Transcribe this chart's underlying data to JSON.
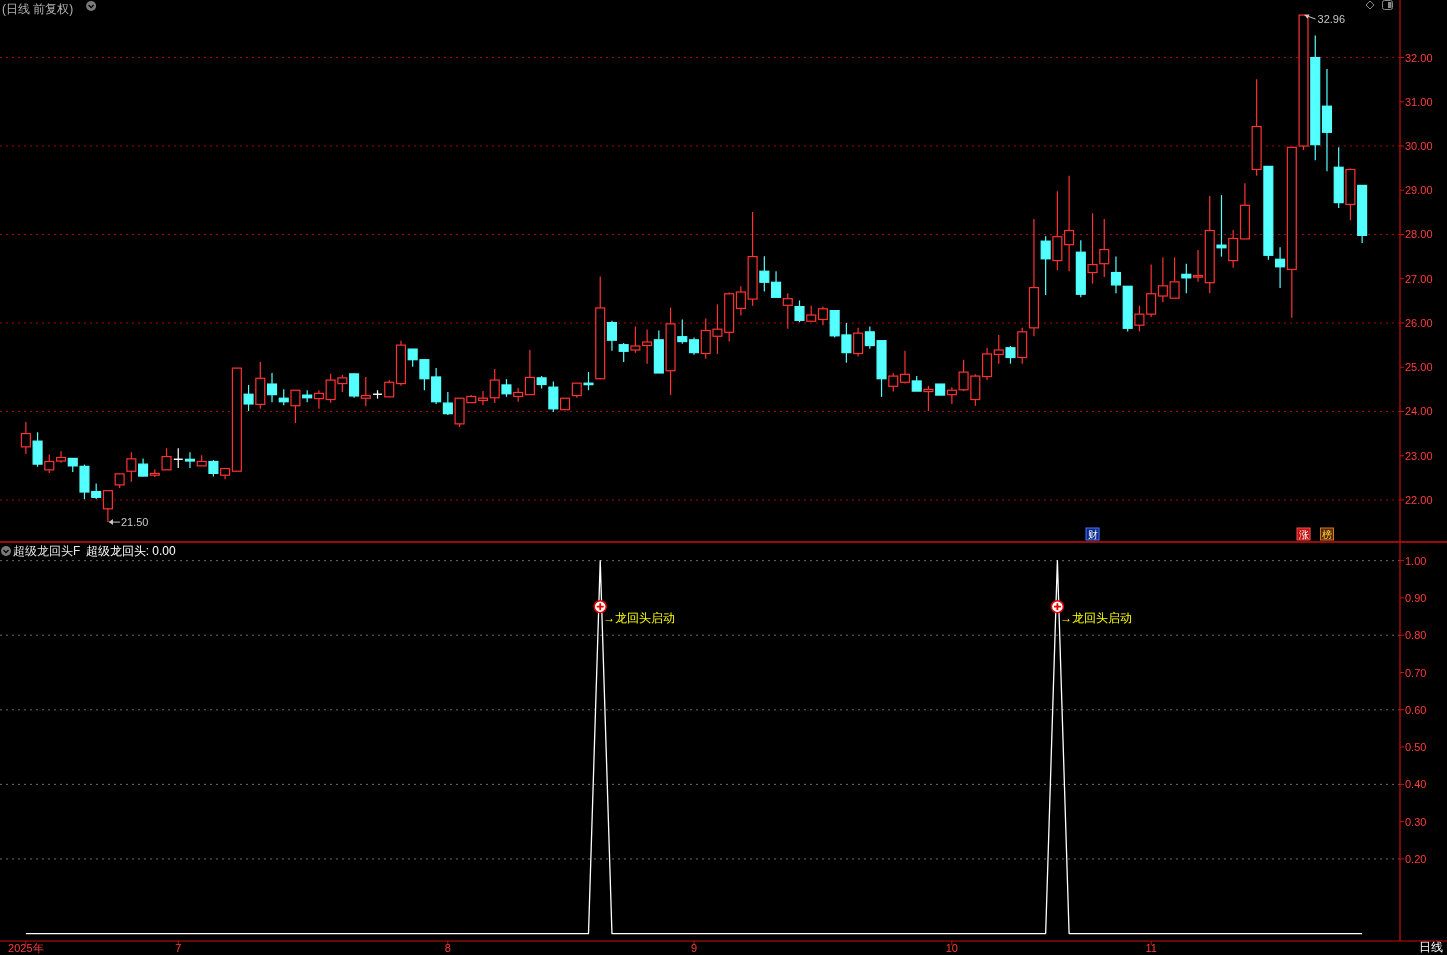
{
  "chart_data": [
    {
      "type": "candlestick",
      "title": "(日线 前复权)",
      "categories": [
        null,
        null,
        null,
        null,
        null,
        null,
        null,
        null,
        null,
        null,
        null,
        null,
        null,
        null,
        null,
        null,
        null,
        null,
        null,
        null,
        null,
        null,
        null,
        null,
        null,
        null,
        null,
        null,
        null,
        null,
        null,
        null,
        null,
        null,
        null,
        null,
        null,
        null,
        null,
        null,
        null,
        null,
        null,
        null,
        null,
        null,
        null,
        null,
        null,
        null,
        null,
        null,
        null,
        null,
        null,
        null,
        null,
        null,
        null,
        null,
        null,
        null,
        null,
        null,
        null,
        null,
        null,
        null,
        null,
        null,
        null,
        null,
        null,
        null,
        null,
        null,
        null,
        null,
        null,
        null,
        null,
        null,
        null,
        null,
        null,
        null,
        null,
        null,
        null,
        null,
        null,
        null,
        null,
        null,
        null,
        null,
        null,
        null,
        null,
        null,
        null,
        null,
        null,
        null,
        null,
        null,
        null,
        null,
        null,
        null,
        null,
        null,
        null,
        null,
        null
      ],
      "ohlc": [
        [
          23.2,
          23.76,
          23.04,
          23.5
        ],
        [
          23.33,
          23.53,
          22.75,
          22.81
        ],
        [
          22.68,
          23.03,
          22.61,
          22.87
        ],
        [
          22.88,
          23.1,
          22.84,
          22.96
        ],
        [
          22.94,
          22.94,
          22.63,
          22.77
        ],
        [
          22.76,
          22.8,
          22.02,
          22.18
        ],
        [
          22.19,
          22.37,
          22.02,
          22.06
        ],
        [
          21.8,
          22.21,
          21.5,
          22.21
        ],
        [
          22.34,
          22.59,
          22.27,
          22.59
        ],
        [
          22.65,
          23.08,
          22.41,
          22.93
        ],
        [
          22.81,
          22.94,
          22.53,
          22.54
        ],
        [
          22.56,
          22.69,
          22.52,
          22.6
        ],
        [
          22.68,
          23.17,
          22.68,
          22.98
        ],
        [
          22.92,
          23.17,
          22.72,
          22.92
        ],
        [
          22.92,
          23.08,
          22.72,
          22.88
        ],
        [
          22.77,
          23.01,
          22.77,
          22.87
        ],
        [
          22.87,
          22.9,
          22.53,
          22.6
        ],
        [
          22.56,
          22.71,
          22.47,
          22.71
        ],
        [
          22.65,
          24.98,
          22.65,
          24.98
        ],
        [
          24.39,
          24.6,
          24.01,
          24.17
        ],
        [
          24.16,
          25.12,
          24.06,
          24.75
        ],
        [
          24.62,
          24.87,
          24.21,
          24.38
        ],
        [
          24.3,
          24.5,
          24.14,
          24.22
        ],
        [
          24.13,
          24.48,
          23.74,
          24.48
        ],
        [
          24.37,
          24.48,
          24.21,
          24.31
        ],
        [
          24.29,
          24.48,
          24.06,
          24.41
        ],
        [
          24.27,
          24.85,
          24.2,
          24.71
        ],
        [
          24.63,
          24.83,
          24.44,
          24.76
        ],
        [
          24.85,
          24.85,
          24.31,
          24.35
        ],
        [
          24.3,
          24.78,
          24.12,
          24.36
        ],
        [
          24.39,
          24.48,
          24.29,
          24.39
        ],
        [
          24.33,
          24.71,
          24.33,
          24.66
        ],
        [
          24.63,
          25.6,
          24.58,
          25.5
        ],
        [
          25.41,
          25.41,
          25.01,
          25.17
        ],
        [
          25.17,
          25.17,
          24.48,
          24.74
        ],
        [
          24.78,
          24.98,
          24.17,
          24.22
        ],
        [
          24.19,
          24.44,
          23.92,
          23.95
        ],
        [
          23.72,
          24.3,
          23.65,
          24.3
        ],
        [
          24.2,
          24.37,
          24.2,
          24.34
        ],
        [
          24.25,
          24.46,
          24.14,
          24.3
        ],
        [
          24.31,
          24.96,
          24.19,
          24.71
        ],
        [
          24.6,
          24.73,
          24.33,
          24.4
        ],
        [
          24.34,
          24.53,
          24.22,
          24.43
        ],
        [
          24.38,
          25.39,
          24.38,
          24.77
        ],
        [
          24.76,
          24.8,
          24.52,
          24.61
        ],
        [
          24.55,
          24.68,
          23.99,
          24.06
        ],
        [
          24.04,
          24.3,
          24.04,
          24.3
        ],
        [
          24.36,
          24.64,
          24.31,
          24.64
        ],
        [
          24.64,
          24.89,
          24.48,
          24.61
        ],
        [
          24.74,
          27.05,
          24.73,
          26.34
        ],
        [
          26.01,
          26.05,
          25.37,
          25.61
        ],
        [
          25.51,
          25.55,
          25.12,
          25.36
        ],
        [
          25.39,
          25.92,
          25.33,
          25.48
        ],
        [
          25.49,
          25.85,
          25.08,
          25.57
        ],
        [
          25.62,
          25.83,
          24.87,
          24.87
        ],
        [
          24.92,
          26.35,
          24.37,
          25.98
        ],
        [
          25.69,
          26.08,
          25.53,
          25.58
        ],
        [
          25.62,
          25.67,
          25.28,
          25.33
        ],
        [
          25.31,
          26.1,
          25.19,
          25.83
        ],
        [
          25.7,
          26.42,
          25.3,
          25.86
        ],
        [
          25.79,
          26.69,
          25.58,
          26.66
        ],
        [
          26.33,
          26.83,
          26.17,
          26.7
        ],
        [
          26.54,
          28.51,
          26.39,
          27.5
        ],
        [
          27.17,
          27.51,
          26.71,
          26.92
        ],
        [
          26.92,
          27.17,
          26.58,
          26.58
        ],
        [
          26.4,
          26.67,
          25.87,
          26.55
        ],
        [
          26.37,
          26.51,
          26.02,
          26.06
        ],
        [
          26.04,
          26.39,
          26.04,
          26.18
        ],
        [
          26.08,
          26.37,
          25.95,
          26.32
        ],
        [
          26.28,
          26.28,
          25.67,
          25.71
        ],
        [
          25.73,
          26.0,
          25.1,
          25.33
        ],
        [
          25.31,
          25.89,
          25.24,
          25.77
        ],
        [
          25.8,
          25.92,
          25.42,
          25.49
        ],
        [
          25.6,
          25.6,
          24.33,
          24.74
        ],
        [
          24.57,
          24.87,
          24.45,
          24.8
        ],
        [
          24.66,
          25.37,
          24.63,
          24.84
        ],
        [
          24.69,
          24.8,
          24.46,
          24.46
        ],
        [
          24.45,
          24.58,
          24.01,
          24.5
        ],
        [
          24.62,
          24.62,
          24.37,
          24.37
        ],
        [
          24.38,
          24.55,
          24.17,
          24.48
        ],
        [
          24.49,
          25.17,
          24.46,
          24.89
        ],
        [
          24.27,
          24.84,
          24.13,
          24.8
        ],
        [
          24.79,
          25.44,
          24.71,
          25.3
        ],
        [
          25.29,
          25.73,
          25.08,
          25.39
        ],
        [
          25.44,
          25.48,
          25.08,
          25.22
        ],
        [
          25.22,
          25.89,
          25.08,
          25.8
        ],
        [
          25.89,
          28.35,
          25.7,
          26.8
        ],
        [
          27.85,
          27.96,
          26.63,
          27.45
        ],
        [
          27.41,
          28.98,
          27.2,
          27.95
        ],
        [
          27.77,
          29.33,
          27.17,
          28.09
        ],
        [
          27.6,
          27.87,
          26.58,
          26.65
        ],
        [
          27.14,
          28.48,
          26.89,
          27.32
        ],
        [
          27.34,
          28.35,
          27.04,
          27.66
        ],
        [
          27.14,
          27.5,
          26.67,
          26.86
        ],
        [
          26.83,
          26.83,
          25.81,
          25.88
        ],
        [
          25.95,
          26.39,
          25.81,
          26.2
        ],
        [
          26.2,
          27.32,
          26.13,
          26.66
        ],
        [
          26.61,
          27.48,
          26.47,
          26.84
        ],
        [
          26.56,
          27.48,
          26.56,
          26.93
        ],
        [
          27.1,
          27.34,
          26.67,
          27.02
        ],
        [
          27.04,
          27.65,
          26.93,
          27.07
        ],
        [
          26.91,
          28.87,
          26.67,
          28.09
        ],
        [
          27.76,
          28.89,
          27.5,
          27.7
        ],
        [
          27.41,
          28.1,
          27.25,
          27.91
        ],
        [
          27.9,
          29.16,
          27.9,
          28.66
        ],
        [
          29.47,
          31.51,
          29.33,
          30.44
        ],
        [
          29.54,
          29.54,
          27.43,
          27.53
        ],
        [
          27.44,
          27.71,
          26.79,
          27.27
        ],
        [
          27.21,
          29.97,
          26.12,
          29.97
        ],
        [
          30.0,
          32.96,
          29.91,
          32.96
        ],
        [
          32.0,
          32.5,
          29.68,
          30.03
        ],
        [
          30.9,
          31.74,
          29.43,
          30.31
        ],
        [
          29.52,
          29.97,
          28.6,
          28.72
        ],
        [
          28.68,
          29.49,
          28.32,
          29.47
        ],
        [
          29.11,
          29.11,
          27.81,
          27.98
        ]
      ],
      "ylim": [
        21.05,
        33.3
      ],
      "yticks": [
        {
          "value": 22,
          "label": "22.00"
        },
        {
          "value": 23,
          "label": "23.00"
        },
        {
          "value": 24,
          "label": "24.00"
        },
        {
          "value": 25,
          "label": "25.00"
        },
        {
          "value": 26,
          "label": "26.00"
        },
        {
          "value": 27,
          "label": "27.00"
        },
        {
          "value": 28,
          "label": "28.00"
        },
        {
          "value": 29,
          "label": "29.00"
        },
        {
          "value": 30,
          "label": "30.00"
        },
        {
          "value": 31,
          "label": "31.00"
        },
        {
          "value": 32,
          "label": "32.00"
        }
      ],
      "grid": "y",
      "annotations": [
        "21.50",
        "32.96",
        "财",
        "涨",
        "榜"
      ]
    },
    {
      "type": "line",
      "title": "超级龙回头F",
      "categories": [
        "2025年",
        null,
        null,
        null,
        null,
        null,
        null,
        null,
        null,
        null,
        null,
        null,
        null,
        "7",
        null,
        null,
        null,
        null,
        null,
        null,
        null,
        null,
        null,
        null,
        null,
        null,
        null,
        null,
        null,
        null,
        null,
        null,
        null,
        null,
        null,
        null,
        "8",
        null,
        null,
        null,
        null,
        null,
        null,
        null,
        null,
        null,
        null,
        null,
        null,
        null,
        null,
        null,
        null,
        null,
        null,
        null,
        null,
        "9",
        null,
        null,
        null,
        null,
        null,
        null,
        null,
        null,
        null,
        null,
        null,
        null,
        null,
        null,
        null,
        null,
        null,
        null,
        null,
        null,
        null,
        "10",
        null,
        null,
        null,
        null,
        null,
        null,
        null,
        null,
        null,
        null,
        null,
        null,
        null,
        null,
        null,
        null,
        "11",
        null,
        null,
        null,
        null,
        null,
        null,
        null,
        null,
        null,
        null,
        null,
        null,
        null,
        null,
        null,
        null,
        null,
        null
      ],
      "series": [
        {
          "name": "超级龙回头: 0.00",
          "color": "#ffffff",
          "values": [
            0,
            0,
            0,
            0,
            0,
            0,
            0,
            0,
            0,
            0,
            0,
            0,
            0,
            0,
            0,
            0,
            0,
            0,
            0,
            0,
            0,
            0,
            0,
            0,
            0,
            0,
            0,
            0,
            0,
            0,
            0,
            0,
            0,
            0,
            0,
            0,
            0,
            0,
            0,
            0,
            0,
            0,
            0,
            0,
            0,
            0,
            0,
            0,
            0,
            1,
            0,
            0,
            0,
            0,
            0,
            0,
            0,
            0,
            0,
            0,
            0,
            0,
            0,
            0,
            0,
            0,
            0,
            0,
            0,
            0,
            0,
            0,
            0,
            0,
            0,
            0,
            0,
            0,
            0,
            0,
            0,
            0,
            0,
            0,
            0,
            0,
            0,
            0,
            1,
            0,
            0,
            0,
            0,
            0,
            0,
            0,
            0,
            0,
            0,
            0,
            0,
            0,
            0,
            0,
            0,
            0,
            0,
            0,
            0,
            0,
            0,
            0,
            0,
            0,
            0
          ]
        }
      ],
      "ylim": [
        -0.02,
        1.05
      ],
      "yticks": [
        {
          "value": 0.2,
          "label": "0.20"
        },
        {
          "value": 0.3,
          "label": "0.30"
        },
        {
          "value": 0.4,
          "label": "0.40"
        },
        {
          "value": 0.5,
          "label": "0.50"
        },
        {
          "value": 0.6,
          "label": "0.60"
        },
        {
          "value": 0.7,
          "label": "0.70"
        },
        {
          "value": 0.8,
          "label": "0.80"
        },
        {
          "value": 0.9,
          "label": "0.90"
        },
        {
          "value": 1,
          "label": "1.00"
        }
      ],
      "grid": "y",
      "legend": "top left",
      "annotations": [
        "→龙回头启动",
        "→龙回头启动",
        "日线"
      ]
    }
  ]
}
